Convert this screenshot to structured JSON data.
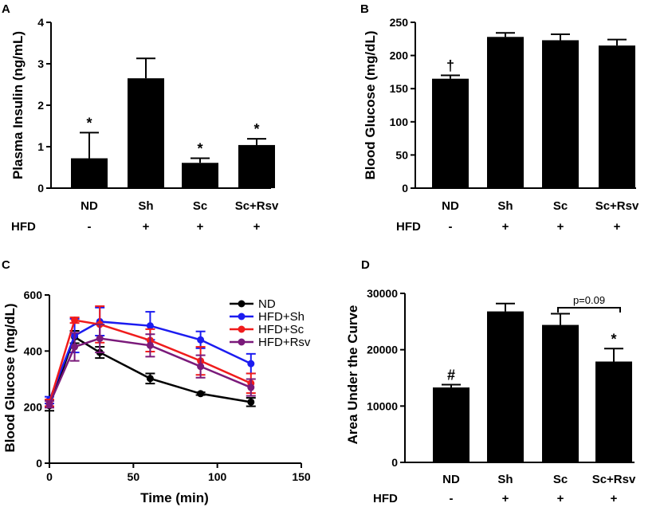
{
  "chart_data": [
    {
      "panel": "A",
      "type": "bar",
      "ylabel": "Plasma Insulin (ng/mL)",
      "ylim": [
        0,
        4
      ],
      "yticks": [
        "0",
        "1",
        "2",
        "3",
        "4"
      ],
      "categories": [
        "ND",
        "Sh",
        "Sc",
        "Sc+Rsv"
      ],
      "values": [
        0.72,
        2.65,
        0.61,
        1.04
      ],
      "errors": [
        0.62,
        0.48,
        0.11,
        0.15
      ],
      "annotations": [
        "*",
        "",
        "*",
        "*"
      ],
      "hfd_label": "HFD",
      "hfd": [
        "-",
        "+",
        "+",
        "+"
      ]
    },
    {
      "panel": "B",
      "type": "bar",
      "ylabel": "Blood Glucose (mg/dL)",
      "ylim": [
        0,
        250
      ],
      "yticks": [
        "0",
        "50",
        "100",
        "150",
        "200",
        "250"
      ],
      "categories": [
        "ND",
        "Sh",
        "Sc",
        "Sc+Rsv"
      ],
      "values": [
        165,
        228,
        223,
        215
      ],
      "errors": [
        5,
        6,
        9,
        9
      ],
      "annotations": [
        "†",
        "",
        "",
        ""
      ],
      "hfd_label": "HFD",
      "hfd": [
        "-",
        "+",
        "+",
        "+"
      ]
    },
    {
      "panel": "C",
      "type": "line",
      "xlabel": "Time (min)",
      "ylabel": "Blood Glucose (mg/dL)",
      "xlim": [
        0,
        150
      ],
      "ylim": [
        0,
        600
      ],
      "xticks": [
        "0",
        "50",
        "100",
        "150"
      ],
      "yticks": [
        "0",
        "200",
        "400",
        "600"
      ],
      "x": [
        0,
        15,
        30,
        60,
        90,
        120
      ],
      "series": [
        {
          "name": "ND",
          "color": "#000000",
          "values": [
            205,
            450,
            395,
            302,
            248,
            218
          ],
          "errors": [
            18,
            22,
            20,
            18,
            5,
            15
          ]
        },
        {
          "name": "HFD+Sh",
          "color": "#1c1cf0",
          "values": [
            225,
            455,
            505,
            490,
            440,
            355
          ],
          "errors": [
            12,
            60,
            50,
            50,
            30,
            35
          ]
        },
        {
          "name": "HFD+Sc",
          "color": "#f01c1c",
          "values": [
            215,
            510,
            495,
            438,
            365,
            285
          ],
          "errors": [
            12,
            10,
            65,
            40,
            50,
            35
          ]
        },
        {
          "name": "HFD+Rsv",
          "color": "#7a1a7a",
          "values": [
            210,
            415,
            445,
            420,
            345,
            270
          ],
          "errors": [
            12,
            50,
            50,
            40,
            40,
            30
          ]
        }
      ]
    },
    {
      "panel": "D",
      "type": "bar",
      "ylabel": "Area Under the Curve",
      "ylim": [
        0,
        30000
      ],
      "yticks": [
        "0",
        "10000",
        "20000",
        "30000"
      ],
      "categories": [
        "ND",
        "Sh",
        "Sc",
        "Sc+Rsv"
      ],
      "values": [
        13300,
        26800,
        24400,
        17900
      ],
      "errors": [
        500,
        1400,
        2000,
        2300
      ],
      "annotations": [
        "#",
        "",
        "",
        "*"
      ],
      "bracket_label": "p=0.09",
      "hfd_label": "HFD",
      "hfd": [
        "-",
        "+",
        "+",
        "+"
      ]
    }
  ]
}
